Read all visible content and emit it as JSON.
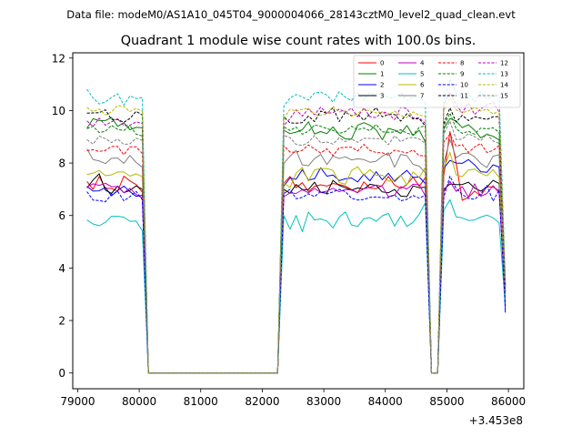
{
  "suptitle": "Data file: modeM0/AS1A10_045T04_9000004066_28143cztM0_level2_quad_clean.evt",
  "chart_data": {
    "type": "line",
    "title": "Quadrant 1 module wise count rates with 100.0s bins.",
    "xlabel": "",
    "ylabel": "",
    "x_offset_label": "+3.453e8",
    "xlim": [
      78920,
      86250
    ],
    "ylim": [
      -0.6,
      12.2
    ],
    "xticks": [
      79000,
      80000,
      81000,
      82000,
      83000,
      84000,
      85000,
      86000
    ],
    "yticks": [
      0,
      2,
      4,
      6,
      8,
      10,
      12
    ],
    "grid": false,
    "legend_position": "top-right",
    "x": [
      79150,
      79250,
      79350,
      79450,
      79550,
      79650,
      79750,
      79850,
      79950,
      80050,
      80150,
      80250,
      80350,
      80450,
      80550,
      80650,
      80750,
      80850,
      80950,
      81050,
      81150,
      81250,
      81350,
      81450,
      81550,
      81650,
      81750,
      81850,
      81950,
      82050,
      82150,
      82250,
      82350,
      82450,
      82550,
      82650,
      82750,
      82850,
      82950,
      83050,
      83150,
      83250,
      83350,
      83450,
      83550,
      83650,
      83750,
      83850,
      83950,
      84050,
      84150,
      84250,
      84350,
      84450,
      84550,
      84650,
      84750,
      84850,
      84950,
      85050,
      85150,
      85250,
      85350,
      85450,
      85550,
      85650,
      85750,
      85850,
      85950
    ],
    "series": [
      {
        "name": "0",
        "color": "#ff0000",
        "dash": "solid",
        "values": [
          7.3,
          7.0,
          7.49,
          7.04,
          7.03,
          6.93,
          7.5,
          7.32,
          7.18,
          6.89,
          0,
          0,
          0,
          0,
          0,
          0,
          0,
          0,
          0,
          0,
          0,
          0,
          0,
          0,
          0,
          0,
          0,
          0,
          0,
          0,
          0,
          0,
          7.23,
          7.49,
          7.06,
          7.25,
          6.91,
          7.11,
          7.17,
          7.12,
          7.22,
          7.18,
          7.12,
          6.99,
          6.86,
          7.28,
          7.05,
          7.02,
          7.15,
          7.49,
          7.16,
          7.03,
          7.18,
          7.47,
          7.11,
          7.44,
          0,
          0,
          7.5,
          9.2,
          8.0,
          6.58,
          6.69,
          6.93,
          6.75,
          7.1,
          7.08,
          6.95,
          3.05
        ]
      },
      {
        "name": "1",
        "color": "#008000",
        "dash": "solid",
        "values": [
          9.32,
          9.69,
          9.62,
          9.62,
          9.73,
          9.4,
          9.53,
          9.27,
          9.36,
          9.34,
          0,
          0,
          0,
          0,
          0,
          0,
          0,
          0,
          0,
          0,
          0,
          0,
          0,
          0,
          0,
          0,
          0,
          0,
          0,
          0,
          0,
          0,
          9.25,
          9.12,
          9.18,
          9.27,
          9.57,
          9.11,
          9.2,
          9.12,
          9.38,
          9.07,
          8.92,
          8.91,
          9.44,
          9.54,
          9.44,
          9.27,
          8.89,
          9.32,
          9.25,
          9.13,
          9.43,
          9.05,
          9.25,
          8.8,
          0,
          0,
          9.3,
          9.7,
          9.6,
          9.35,
          9.46,
          9.25,
          8.96,
          9.1,
          9.02,
          8.88,
          3.1
        ]
      },
      {
        "name": "2",
        "color": "#0000ff",
        "dash": "solid",
        "values": [
          7.11,
          6.93,
          6.94,
          7.07,
          6.75,
          6.95,
          7.12,
          6.91,
          6.73,
          6.77,
          0,
          0,
          0,
          0,
          0,
          0,
          0,
          0,
          0,
          0,
          0,
          0,
          0,
          0,
          0,
          0,
          0,
          0,
          0,
          0,
          0,
          0,
          7.12,
          7.43,
          7.38,
          7.75,
          7.35,
          7.4,
          7.82,
          7.5,
          7.54,
          7.33,
          7.4,
          7.43,
          7.28,
          7.57,
          7.32,
          7.67,
          7.36,
          7.61,
          7.3,
          7.53,
          7.72,
          7.45,
          7.47,
          7.22,
          0,
          0,
          7.8,
          8.1,
          8.0,
          7.99,
          8.13,
          7.93,
          7.67,
          7.65,
          7.93,
          7.85,
          2.3
        ]
      },
      {
        "name": "3",
        "color": "#000000",
        "dash": "solid",
        "values": [
          7.05,
          7.35,
          7.59,
          6.97,
          6.84,
          7.12,
          6.87,
          6.96,
          7.13,
          7.0,
          0,
          0,
          0,
          0,
          0,
          0,
          0,
          0,
          0,
          0,
          0,
          0,
          0,
          0,
          0,
          0,
          0,
          0,
          0,
          0,
          0,
          0,
          7.0,
          6.85,
          7.18,
          6.99,
          6.99,
          7.27,
          6.88,
          6.85,
          7.34,
          7.15,
          7.06,
          6.97,
          7.05,
          7.01,
          7.19,
          7.15,
          6.9,
          6.87,
          6.99,
          6.74,
          6.72,
          7.13,
          7.06,
          7.08,
          0,
          0,
          7.0,
          7.2,
          7.18,
          7.18,
          7.27,
          7.05,
          6.93,
          7.08,
          7.34,
          7.22,
          2.6
        ]
      },
      {
        "name": "4",
        "color": "#c000c0",
        "dash": "solid",
        "values": [
          7.09,
          7.21,
          7.15,
          7.23,
          7.1,
          7.1,
          6.87,
          7.04,
          6.8,
          6.67,
          0,
          0,
          0,
          0,
          0,
          0,
          0,
          0,
          0,
          0,
          0,
          0,
          0,
          0,
          0,
          0,
          0,
          0,
          0,
          0,
          0,
          0,
          6.72,
          6.86,
          6.84,
          6.98,
          6.87,
          7.03,
          6.88,
          6.93,
          7.04,
          6.91,
          6.99,
          6.97,
          6.88,
          7.02,
          7.07,
          7.16,
          7.11,
          6.72,
          6.78,
          7.1,
          7.01,
          7.19,
          7.17,
          6.75,
          0,
          0,
          6.9,
          7.3,
          6.92,
          7.1,
          6.7,
          7.21,
          6.73,
          6.84,
          7.14,
          6.86,
          2.7
        ]
      },
      {
        "name": "5",
        "color": "#00c0c0",
        "dash": "solid",
        "values": [
          5.83,
          5.68,
          5.61,
          5.74,
          5.97,
          5.97,
          5.94,
          5.78,
          5.79,
          5.42,
          0,
          0,
          0,
          0,
          0,
          0,
          0,
          0,
          0,
          0,
          0,
          0,
          0,
          0,
          0,
          0,
          0,
          0,
          0,
          0,
          0,
          0,
          6.0,
          5.48,
          6.0,
          5.39,
          6.13,
          5.83,
          5.87,
          5.79,
          5.53,
          5.94,
          6.14,
          5.64,
          5.58,
          5.88,
          5.92,
          5.78,
          5.99,
          6.08,
          5.6,
          5.98,
          5.58,
          5.74,
          6.05,
          6.48,
          0,
          0,
          6.2,
          6.6,
          5.95,
          5.91,
          5.81,
          5.83,
          5.94,
          6.02,
          5.91,
          5.72,
          2.5
        ]
      },
      {
        "name": "6",
        "color": "#b8b800",
        "dash": "solid",
        "values": [
          7.56,
          7.61,
          7.72,
          7.52,
          7.55,
          7.66,
          7.66,
          7.5,
          7.59,
          7.48,
          0,
          0,
          0,
          0,
          0,
          0,
          0,
          0,
          0,
          0,
          0,
          0,
          0,
          0,
          0,
          0,
          0,
          0,
          0,
          0,
          0,
          0,
          7.24,
          7.07,
          7.61,
          7.83,
          7.31,
          7.74,
          7.79,
          7.79,
          7.72,
          7.26,
          7.19,
          7.71,
          7.86,
          7.53,
          7.75,
          7.53,
          7.54,
          7.31,
          7.35,
          7.54,
          7.16,
          7.66,
          7.45,
          7.83,
          0,
          0,
          7.8,
          8.4,
          7.55,
          7.48,
          7.74,
          7.77,
          7.61,
          7.51,
          7.75,
          7.45,
          2.85
        ]
      },
      {
        "name": "7",
        "color": "#808080",
        "dash": "solid",
        "values": [
          8.54,
          8.13,
          8.08,
          7.98,
          8.18,
          8.19,
          7.99,
          8.29,
          8.02,
          7.84,
          0,
          0,
          0,
          0,
          0,
          0,
          0,
          0,
          0,
          0,
          0,
          0,
          0,
          0,
          0,
          0,
          0,
          0,
          0,
          0,
          0,
          0,
          7.99,
          8.26,
          8.48,
          7.93,
          7.9,
          8.17,
          8.33,
          7.94,
          8.27,
          8.17,
          8.24,
          8.12,
          8.16,
          8.13,
          8.03,
          8.07,
          8.26,
          8.39,
          7.84,
          8.33,
          8.28,
          7.95,
          7.88,
          7.63,
          0,
          0,
          8.0,
          8.9,
          8.2,
          8.36,
          8.38,
          8.24,
          7.99,
          7.83,
          8.26,
          8.32,
          2.9
        ]
      },
      {
        "name": "8",
        "color": "#ff0000",
        "dash": "dashed",
        "values": [
          8.47,
          8.51,
          8.44,
          8.48,
          8.63,
          8.63,
          8.31,
          8.62,
          8.62,
          8.36,
          0,
          0,
          0,
          0,
          0,
          0,
          0,
          0,
          0,
          0,
          0,
          0,
          0,
          0,
          0,
          0,
          0,
          0,
          0,
          0,
          0,
          0,
          8.66,
          8.42,
          8.41,
          8.49,
          8.69,
          8.54,
          8.38,
          8.54,
          8.28,
          8.58,
          8.6,
          8.6,
          8.46,
          8.71,
          8.48,
          8.4,
          8.39,
          8.3,
          8.49,
          8.44,
          8.38,
          8.5,
          8.28,
          8.28,
          0,
          0,
          8.8,
          9.1,
          8.64,
          8.7,
          8.4,
          8.61,
          8.75,
          8.4,
          8.48,
          8.67,
          3.1
        ]
      },
      {
        "name": "9",
        "color": "#008000",
        "dash": "dashed",
        "values": [
          9.31,
          9.4,
          9.16,
          9.21,
          9.44,
          9.28,
          9.24,
          9.42,
          9.1,
          9.03,
          0,
          0,
          0,
          0,
          0,
          0,
          0,
          0,
          0,
          0,
          0,
          0,
          0,
          0,
          0,
          0,
          0,
          0,
          0,
          0,
          0,
          0,
          9.38,
          9.24,
          9.37,
          9.1,
          9.21,
          9.45,
          9.4,
          9.31,
          9.24,
          9.13,
          9.2,
          9.4,
          9.27,
          9.33,
          9.23,
          9.47,
          9.19,
          9.17,
          9.19,
          9.27,
          9.14,
          9.07,
          9.36,
          9.42,
          0,
          0,
          9.4,
          9.9,
          9.31,
          9.13,
          9.21,
          9.1,
          9.33,
          9.3,
          9.34,
          9.17,
          3.2
        ]
      },
      {
        "name": "10",
        "color": "#0000ff",
        "dash": "dashed",
        "values": [
          6.91,
          6.59,
          6.57,
          6.52,
          6.8,
          6.92,
          6.56,
          6.72,
          6.92,
          6.6,
          0,
          0,
          0,
          0,
          0,
          0,
          0,
          0,
          0,
          0,
          0,
          0,
          0,
          0,
          0,
          0,
          0,
          0,
          0,
          0,
          0,
          0,
          6.83,
          7.0,
          6.64,
          6.69,
          6.83,
          6.72,
          6.92,
          6.82,
          6.9,
          7.0,
          6.91,
          6.66,
          6.59,
          6.61,
          6.69,
          6.71,
          6.68,
          6.68,
          6.79,
          6.56,
          6.62,
          6.76,
          6.66,
          6.78,
          0,
          0,
          6.7,
          7.5,
          7.04,
          6.8,
          6.65,
          6.62,
          6.82,
          7.15,
          6.55,
          6.98,
          2.5
        ]
      },
      {
        "name": "11",
        "color": "#000000",
        "dash": "dashed",
        "values": [
          9.9,
          9.91,
          9.92,
          10.03,
          9.66,
          9.66,
          9.55,
          9.7,
          9.97,
          9.83,
          0,
          0,
          0,
          0,
          0,
          0,
          0,
          0,
          0,
          0,
          0,
          0,
          0,
          0,
          0,
          0,
          0,
          0,
          0,
          0,
          0,
          0,
          9.76,
          9.53,
          9.52,
          9.54,
          9.79,
          9.58,
          9.98,
          9.89,
          10.11,
          9.58,
          9.94,
          9.8,
          9.87,
          9.63,
          9.87,
          10.11,
          9.76,
          9.85,
          9.85,
          9.6,
          9.88,
          9.68,
          9.69,
          9.41,
          0,
          0,
          9.5,
          10.1,
          9.56,
          9.82,
          9.62,
          9.76,
          9.71,
          9.66,
          9.76,
          9.77,
          3.3
        ]
      },
      {
        "name": "12",
        "color": "#c000c0",
        "dash": "dashed",
        "values": [
          9.61,
          9.39,
          9.71,
          9.44,
          9.57,
          9.69,
          9.42,
          9.44,
          9.57,
          9.51,
          0,
          0,
          0,
          0,
          0,
          0,
          0,
          0,
          0,
          0,
          0,
          0,
          0,
          0,
          0,
          0,
          0,
          0,
          0,
          0,
          0,
          0,
          9.43,
          9.69,
          10.03,
          9.79,
          10.07,
          9.84,
          10.13,
          9.9,
          9.92,
          10.05,
          9.94,
          10.09,
          9.76,
          10.1,
          9.76,
          9.73,
          9.96,
          9.88,
          9.65,
          10.13,
          10.07,
          9.72,
          9.72,
          9.51,
          0,
          0,
          10.2,
          10.7,
          10.22,
          9.91,
          10.29,
          9.85,
          10.06,
          10.22,
          10.32,
          9.95,
          3.4
        ]
      },
      {
        "name": "13",
        "color": "#00c0c0",
        "dash": "dashed",
        "values": [
          10.81,
          10.48,
          10.25,
          10.33,
          10.5,
          10.64,
          10.21,
          10.56,
          10.46,
          10.49,
          0,
          0,
          0,
          0,
          0,
          0,
          0,
          0,
          0,
          0,
          0,
          0,
          0,
          0,
          0,
          0,
          0,
          0,
          0,
          0,
          0,
          0,
          10.16,
          10.48,
          10.61,
          10.52,
          10.4,
          10.67,
          10.7,
          10.59,
          10.32,
          10.72,
          10.51,
          10.38,
          10.66,
          10.4,
          10.7,
          10.54,
          10.68,
          10.48,
          10.5,
          10.67,
          10.39,
          10.51,
          10.51,
          10.32,
          0,
          0,
          10.4,
          11.2,
          10.67,
          10.53,
          10.65,
          10.33,
          10.7,
          10.45,
          10.51,
          10.61,
          3.6
        ]
      },
      {
        "name": "14",
        "color": "#b8b800",
        "dash": "dashed",
        "values": [
          10.12,
          9.96,
          10.06,
          9.83,
          9.95,
          10.2,
          10.15,
          9.96,
          10.08,
          9.98,
          0,
          0,
          0,
          0,
          0,
          0,
          0,
          0,
          0,
          0,
          0,
          0,
          0,
          0,
          0,
          0,
          0,
          0,
          0,
          0,
          0,
          0,
          9.7,
          10.05,
          9.98,
          10.05,
          10.09,
          9.85,
          9.81,
          9.87,
          10.16,
          9.95,
          9.98,
          9.78,
          9.9,
          10.04,
          9.99,
          9.91,
          9.93,
          9.82,
          9.98,
          9.81,
          9.73,
          9.95,
          9.82,
          9.8,
          0,
          0,
          10.0,
          10.5,
          10.03,
          9.92,
          9.98,
          10.13,
          9.98,
          10.06,
          9.87,
          9.98,
          3.5
        ]
      },
      {
        "name": "15",
        "color": "#808080",
        "dash": "dashed",
        "values": [
          8.89,
          8.72,
          9.03,
          8.93,
          8.78,
          8.91,
          8.71,
          8.73,
          8.95,
          8.86,
          0,
          0,
          0,
          0,
          0,
          0,
          0,
          0,
          0,
          0,
          0,
          0,
          0,
          0,
          0,
          0,
          0,
          0,
          0,
          0,
          0,
          0,
          9.05,
          8.97,
          8.71,
          8.67,
          8.79,
          9.05,
          8.77,
          8.8,
          8.72,
          8.96,
          8.82,
          8.92,
          8.79,
          8.94,
          8.94,
          8.93,
          8.93,
          8.7,
          9.04,
          8.81,
          8.94,
          8.98,
          8.92,
          8.75,
          0,
          0,
          9.1,
          9.6,
          8.89,
          8.91,
          9.12,
          9.01,
          8.85,
          9.11,
          8.84,
          8.75,
          3.2
        ]
      }
    ]
  }
}
